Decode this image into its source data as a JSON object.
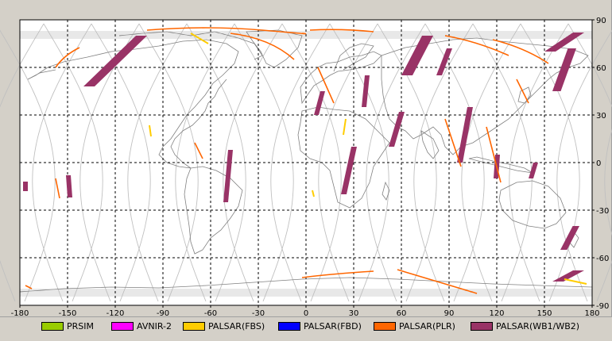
{
  "map": {
    "x_ticks": [
      "-180",
      "-150",
      "-120",
      "-90",
      "-60",
      "-30",
      "0",
      "30",
      "60",
      "90",
      "120",
      "150",
      "180"
    ],
    "y_ticks": [
      "90",
      "60",
      "30",
      "0",
      "-30",
      "-60",
      "-90"
    ],
    "x_range": [
      -180,
      180
    ],
    "y_range": [
      -90,
      90
    ],
    "grid": true,
    "grid_style": "dashed",
    "colors": {
      "plot_background": "#ffffff",
      "grid": "#000000",
      "coastline": "#808080",
      "orbit_track": "#c0c0c0"
    }
  },
  "legend": [
    {
      "label": "PRSIM",
      "color": "#99cc00"
    },
    {
      "label": "AVNIR-2",
      "color": "#ff00ff"
    },
    {
      "label": "PALSAR(FBS)",
      "color": "#ffcc00"
    },
    {
      "label": "PALSAR(FBD)",
      "color": "#0000ff"
    },
    {
      "label": "PALSAR(PLR)",
      "color": "#ff6600"
    },
    {
      "label": "PALSAR(WB1/WB2)",
      "color": "#993366"
    }
  ],
  "swaths": {
    "wb": [
      {
        "lon": [
          -140,
          -100
        ],
        "lat": [
          48,
          80
        ]
      },
      {
        "lon": [
          -52,
          -46
        ],
        "lat": [
          -25,
          8
        ]
      },
      {
        "lon": [
          -150,
          -148
        ],
        "lat": [
          -22,
          -8
        ]
      },
      {
        "lon": [
          5,
          12
        ],
        "lat": [
          30,
          45
        ]
      },
      {
        "lon": [
          35,
          40
        ],
        "lat": [
          35,
          55
        ]
      },
      {
        "lon": [
          52,
          62
        ],
        "lat": [
          10,
          32
        ]
      },
      {
        "lon": [
          22,
          32
        ],
        "lat": [
          -20,
          10
        ]
      },
      {
        "lon": [
          60,
          80
        ],
        "lat": [
          55,
          80
        ]
      },
      {
        "lon": [
          82,
          92
        ],
        "lat": [
          55,
          72
        ]
      },
      {
        "lon": [
          95,
          105
        ],
        "lat": [
          0,
          35
        ]
      },
      {
        "lon": [
          118,
          122
        ],
        "lat": [
          -10,
          5
        ]
      },
      {
        "lon": [
          140,
          146
        ],
        "lat": [
          -10,
          0
        ]
      },
      {
        "lon": [
          150,
          175
        ],
        "lat": [
          70,
          82
        ]
      },
      {
        "lon": [
          155,
          170
        ],
        "lat": [
          45,
          72
        ]
      },
      {
        "lon": [
          160,
          172
        ],
        "lat": [
          -55,
          -40
        ]
      },
      {
        "lon": [
          155,
          175
        ],
        "lat": [
          -75,
          -68
        ]
      },
      {
        "lon": [
          -178,
          -175
        ],
        "lat": [
          -18,
          -12
        ]
      }
    ]
  }
}
